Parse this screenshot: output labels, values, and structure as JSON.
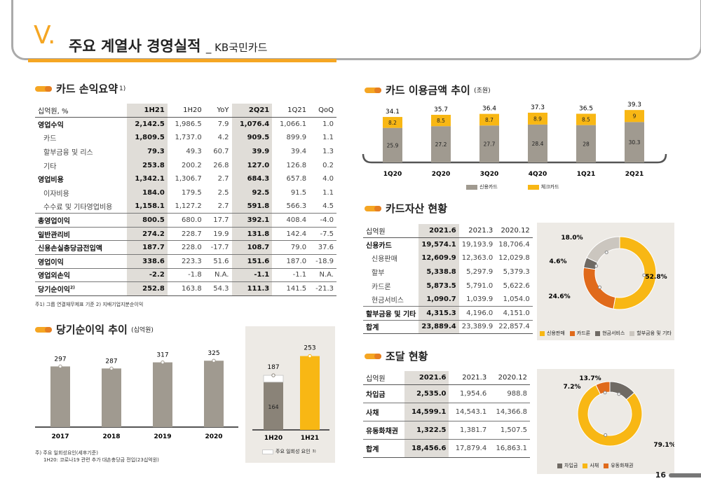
{
  "header": {
    "roman": "V.",
    "title": "주요 계열사 경영실적",
    "subtitle": "_ KB국민카드",
    "page": "16"
  },
  "income": {
    "title": "카드 손익요약",
    "sup": "1)",
    "columns": [
      "십억원, %",
      "1H21",
      "1H20",
      "YoY",
      "2Q21",
      "1Q21",
      "QoQ"
    ],
    "rows": [
      [
        "영업수익",
        "2,142.5",
        "1,986.5",
        "7.9",
        "1,076.4",
        "1,066.1",
        "1.0"
      ],
      [
        "카드",
        "1,809.5",
        "1,737.0",
        "4.2",
        "909.5",
        "899.9",
        "1.1"
      ],
      [
        "할부금융 및 리스",
        "79.3",
        "49.3",
        "60.7",
        "39.9",
        "39.4",
        "1.3"
      ],
      [
        "기타",
        "253.8",
        "200.2",
        "26.8",
        "127.0",
        "126.8",
        "0.2"
      ],
      [
        "영업비용",
        "1,342.1",
        "1,306.7",
        "2.7",
        "684.3",
        "657.8",
        "4.0"
      ],
      [
        "이자비용",
        "184.0",
        "179.5",
        "2.5",
        "92.5",
        "91.5",
        "1.1"
      ],
      [
        "수수료 및 기타영업비용",
        "1,158.1",
        "1,127.2",
        "2.7",
        "591.8",
        "566.3",
        "4.5"
      ],
      [
        "총영업이익",
        "800.5",
        "680.0",
        "17.7",
        "392.1",
        "408.4",
        "-4.0"
      ],
      [
        "일반관리비",
        "274.2",
        "228.7",
        "19.9",
        "131.8",
        "142.4",
        "-7.5"
      ],
      [
        "신용손실충당금전입액",
        "187.7",
        "228.0",
        "-17.7",
        "108.7",
        "79.0",
        "37.6"
      ],
      [
        "영업이익",
        "338.6",
        "223.3",
        "51.6",
        "151.6",
        "187.0",
        "-18.9"
      ],
      [
        "영업외손익",
        "-2.2",
        "-1.8",
        "N.A.",
        "-1.1",
        "-1.1",
        "N.A."
      ],
      [
        "당기순이익",
        "252.8",
        "163.8",
        "54.3",
        "111.3",
        "141.5",
        "-21.3"
      ]
    ],
    "last_row_sup": "2)",
    "note": "주1) 그룹 연결재무제표 기준   2) 지배기업지분순이익"
  },
  "net_income": {
    "title": "당기순이익 추이",
    "unit": "(십억원)",
    "chart_data": {
      "type": "bar",
      "categories": [
        "2017",
        "2018",
        "2019",
        "2020"
      ],
      "values": [
        297,
        287,
        317,
        325
      ],
      "ylim": [
        0,
        360
      ]
    },
    "note1": "주) 주요 일회성요인(세후기준)",
    "note2": "1H20: 코로나19 관련 추가 대손충당금 전입(23십억원)"
  },
  "half": {
    "chart_data": {
      "type": "bar",
      "categories": [
        "1H20",
        "1H21"
      ],
      "values": [
        187,
        253
      ],
      "onetime": [
        23,
        0
      ],
      "base": [
        164,
        253
      ],
      "ylim": [
        0,
        300
      ]
    },
    "base_label": "164",
    "legend": "주요 일회성 요인",
    "legend_sup": "3)"
  },
  "usage": {
    "title": "카드 이용금액 추이",
    "unit": "(조원)",
    "chart_data": {
      "type": "bar",
      "categories": [
        "1Q20",
        "2Q20",
        "3Q20",
        "4Q20",
        "1Q21",
        "2Q21"
      ],
      "series": [
        {
          "name": "신용카드",
          "values": [
            25.9,
            27.2,
            27.7,
            28.4,
            28.0,
            30.3
          ]
        },
        {
          "name": "체크카드",
          "values": [
            8.2,
            8.5,
            8.7,
            8.9,
            8.5,
            9.0
          ]
        }
      ],
      "totals": [
        34.1,
        35.7,
        36.4,
        37.3,
        36.5,
        39.3
      ],
      "ylim": [
        0,
        42
      ]
    },
    "colors": [
      "#a09a90",
      "#f8b714"
    ]
  },
  "assets": {
    "title": "카드자산 현황",
    "columns": [
      "십억원",
      "2021.6",
      "2021.3",
      "2020.12"
    ],
    "rows": [
      [
        "신용카드",
        "19,574.1",
        "19,193.9",
        "18,706.4"
      ],
      [
        "신용판매",
        "12,609.9",
        "12,363.0",
        "12,029.8"
      ],
      [
        "할부",
        "5,338.8",
        "5,297.9",
        "5,379.3"
      ],
      [
        "카드론",
        "5,873.5",
        "5,791.0",
        "5,622.6"
      ],
      [
        "현금서비스",
        "1,090.7",
        "1,039.9",
        "1,054.0"
      ],
      [
        "할부금융 및 기타",
        "4,315.3",
        "4,196.0",
        "4,151.0"
      ],
      [
        "합계",
        "23,889.4",
        "23,389.9",
        "22,857.4"
      ]
    ],
    "chart_data": {
      "type": "pie",
      "labels": [
        "신용판매",
        "카드론",
        "현금서비스",
        "할부금융 및 기타"
      ],
      "values": [
        52.8,
        24.6,
        4.6,
        18.0
      ]
    },
    "pct_labels": [
      "52.8%",
      "24.6%",
      "4.6%",
      "18.0%"
    ],
    "colors": [
      "#f8b714",
      "#e06a1b",
      "#6f6a64",
      "#cbc6bf"
    ]
  },
  "funding": {
    "title": "조달 현황",
    "columns": [
      "십억원",
      "2021.6",
      "2021.3",
      "2020.12"
    ],
    "rows": [
      [
        "차입금",
        "2,535.0",
        "1,954.6",
        "988.8"
      ],
      [
        "사채",
        "14,599.1",
        "14,543.1",
        "14,366.8"
      ],
      [
        "유동화채권",
        "1,322.5",
        "1,381.7",
        "1,507.5"
      ],
      [
        "합계",
        "18,456.6",
        "17,879.4",
        "16,863.1"
      ]
    ],
    "chart_data": {
      "type": "pie",
      "labels": [
        "차입금",
        "사채",
        "유동화채권"
      ],
      "values": [
        13.7,
        79.1,
        7.2
      ]
    },
    "pct_labels": [
      "13.7%",
      "79.1%",
      "7.2%"
    ],
    "colors": [
      "#6f6a64",
      "#f8b714",
      "#e06a1b"
    ]
  }
}
